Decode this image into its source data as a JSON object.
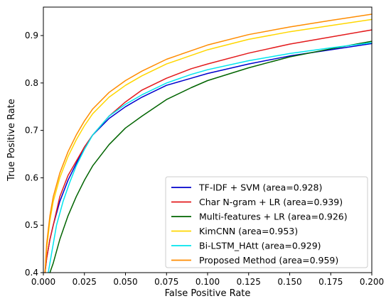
{
  "chart_data": {
    "type": "line",
    "title": "",
    "xlabel": "False Positive Rate",
    "ylabel": "True Positive Rate",
    "xlim": [
      0.0,
      0.2
    ],
    "ylim": [
      0.4,
      0.96
    ],
    "x_ticks": [
      "0.000",
      "0.025",
      "0.050",
      "0.075",
      "0.100",
      "0.125",
      "0.150",
      "0.175",
      "0.200"
    ],
    "y_ticks": [
      "0.4",
      "0.5",
      "0.6",
      "0.7",
      "0.8",
      "0.9"
    ],
    "grid": false,
    "legend_position": "bottom-right",
    "series": [
      {
        "name": "TF-IDF + SVM (area=0.928)",
        "color": "#0000cc",
        "points": [
          [
            0.001,
            0.4
          ],
          [
            0.002,
            0.43
          ],
          [
            0.004,
            0.47
          ],
          [
            0.006,
            0.5
          ],
          [
            0.01,
            0.55
          ],
          [
            0.015,
            0.595
          ],
          [
            0.02,
            0.63
          ],
          [
            0.025,
            0.665
          ],
          [
            0.03,
            0.69
          ],
          [
            0.04,
            0.725
          ],
          [
            0.05,
            0.75
          ],
          [
            0.06,
            0.77
          ],
          [
            0.075,
            0.795
          ],
          [
            0.09,
            0.81
          ],
          [
            0.1,
            0.82
          ],
          [
            0.125,
            0.84
          ],
          [
            0.15,
            0.857
          ],
          [
            0.175,
            0.87
          ],
          [
            0.2,
            0.883
          ]
        ]
      },
      {
        "name": "Char N-gram + LR (area=0.939)",
        "color": "#e31a1c",
        "points": [
          [
            0.001,
            0.4
          ],
          [
            0.002,
            0.43
          ],
          [
            0.004,
            0.47
          ],
          [
            0.006,
            0.5
          ],
          [
            0.01,
            0.56
          ],
          [
            0.015,
            0.605
          ],
          [
            0.02,
            0.635
          ],
          [
            0.025,
            0.665
          ],
          [
            0.03,
            0.69
          ],
          [
            0.04,
            0.73
          ],
          [
            0.05,
            0.76
          ],
          [
            0.06,
            0.785
          ],
          [
            0.075,
            0.81
          ],
          [
            0.09,
            0.83
          ],
          [
            0.1,
            0.84
          ],
          [
            0.125,
            0.863
          ],
          [
            0.15,
            0.882
          ],
          [
            0.175,
            0.897
          ],
          [
            0.2,
            0.912
          ]
        ]
      },
      {
        "name": "Multi-features + LR (area=0.926)",
        "color": "#006400",
        "points": [
          [
            0.004,
            0.4
          ],
          [
            0.006,
            0.42
          ],
          [
            0.01,
            0.47
          ],
          [
            0.015,
            0.52
          ],
          [
            0.02,
            0.56
          ],
          [
            0.025,
            0.595
          ],
          [
            0.03,
            0.625
          ],
          [
            0.04,
            0.67
          ],
          [
            0.05,
            0.705
          ],
          [
            0.06,
            0.73
          ],
          [
            0.075,
            0.765
          ],
          [
            0.09,
            0.79
          ],
          [
            0.1,
            0.805
          ],
          [
            0.125,
            0.832
          ],
          [
            0.15,
            0.855
          ],
          [
            0.175,
            0.872
          ],
          [
            0.2,
            0.888
          ]
        ]
      },
      {
        "name": "KimCNN (area=0.953)",
        "color": "#ffd700",
        "points": [
          [
            0.001,
            0.4
          ],
          [
            0.002,
            0.45
          ],
          [
            0.004,
            0.51
          ],
          [
            0.006,
            0.55
          ],
          [
            0.01,
            0.6
          ],
          [
            0.015,
            0.645
          ],
          [
            0.02,
            0.68
          ],
          [
            0.025,
            0.71
          ],
          [
            0.03,
            0.735
          ],
          [
            0.04,
            0.77
          ],
          [
            0.05,
            0.795
          ],
          [
            0.06,
            0.815
          ],
          [
            0.075,
            0.84
          ],
          [
            0.09,
            0.858
          ],
          [
            0.1,
            0.87
          ],
          [
            0.125,
            0.892
          ],
          [
            0.15,
            0.908
          ],
          [
            0.175,
            0.921
          ],
          [
            0.2,
            0.934
          ]
        ]
      },
      {
        "name": "Bi-LSTM_HAtt (area=0.929)",
        "color": "#00e5ee",
        "points": [
          [
            0.003,
            0.4
          ],
          [
            0.005,
            0.44
          ],
          [
            0.008,
            0.5
          ],
          [
            0.012,
            0.55
          ],
          [
            0.016,
            0.59
          ],
          [
            0.02,
            0.625
          ],
          [
            0.025,
            0.66
          ],
          [
            0.03,
            0.69
          ],
          [
            0.04,
            0.73
          ],
          [
            0.05,
            0.755
          ],
          [
            0.06,
            0.775
          ],
          [
            0.075,
            0.8
          ],
          [
            0.09,
            0.818
          ],
          [
            0.1,
            0.828
          ],
          [
            0.125,
            0.847
          ],
          [
            0.15,
            0.862
          ],
          [
            0.175,
            0.874
          ],
          [
            0.2,
            0.885
          ]
        ]
      },
      {
        "name": "Proposed Method (area=0.959)",
        "color": "#ff8c00",
        "points": [
          [
            0.001,
            0.4
          ],
          [
            0.002,
            0.46
          ],
          [
            0.004,
            0.52
          ],
          [
            0.006,
            0.56
          ],
          [
            0.01,
            0.61
          ],
          [
            0.015,
            0.655
          ],
          [
            0.02,
            0.69
          ],
          [
            0.025,
            0.72
          ],
          [
            0.03,
            0.745
          ],
          [
            0.04,
            0.78
          ],
          [
            0.05,
            0.805
          ],
          [
            0.06,
            0.825
          ],
          [
            0.075,
            0.85
          ],
          [
            0.09,
            0.868
          ],
          [
            0.1,
            0.88
          ],
          [
            0.125,
            0.902
          ],
          [
            0.15,
            0.918
          ],
          [
            0.175,
            0.932
          ],
          [
            0.2,
            0.945
          ]
        ]
      }
    ]
  }
}
